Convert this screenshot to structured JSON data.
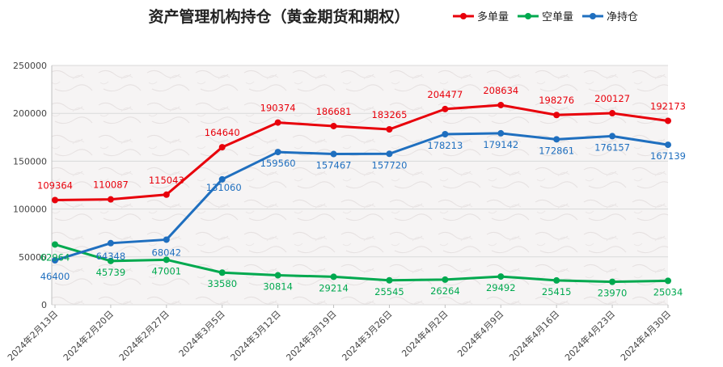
{
  "chart_data": {
    "type": "line",
    "title": "资产管理机构持仓（黄金期货和期权）",
    "categories": [
      "2024年2月13日",
      "2024年2月20日",
      "2024年2月27日",
      "2024年3月5日",
      "2024年3月12日",
      "2024年3月19日",
      "2024年3月26日",
      "2024年4月2日",
      "2024年4月9日",
      "2024年4月16日",
      "2024年4月23日",
      "2024年4月30日"
    ],
    "ylim": [
      0,
      250000
    ],
    "yticks": [
      0,
      50000,
      100000,
      150000,
      200000,
      250000
    ],
    "grid": true,
    "legend": "top-right",
    "series": [
      {
        "name": "多单量",
        "color": "#e8000b",
        "values": [
          109364,
          110087,
          115043,
          164640,
          190374,
          186681,
          183265,
          204477,
          208634,
          198276,
          200127,
          192173
        ]
      },
      {
        "name": "空单量",
        "color": "#00a94f",
        "values": [
          62964,
          45739,
          47001,
          33580,
          30814,
          29214,
          25545,
          26264,
          29492,
          25415,
          23970,
          25034
        ]
      },
      {
        "name": "净持仓",
        "color": "#1f6fbf",
        "values": [
          46400,
          64348,
          68042,
          131060,
          159560,
          157467,
          157720,
          178213,
          179142,
          172861,
          176157,
          167139
        ]
      }
    ]
  }
}
